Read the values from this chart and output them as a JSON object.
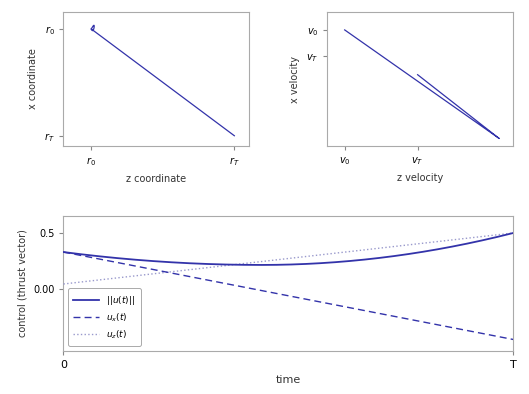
{
  "line_color": "#3333aa",
  "line_color_light": "#9999cc",
  "background": "#ffffff",
  "spine_color": "#aaaaaa",
  "top_left": {
    "xlabel": "z coordinate",
    "ylabel": "x coordinate",
    "xtick_labels": [
      "$r_0$",
      "$r_T$"
    ],
    "ytick_labels": [
      "$r_T$",
      "$r_0$"
    ]
  },
  "top_right": {
    "xlabel": "z velocity",
    "ylabel": "x velocity",
    "xtick_labels": [
      "$v_0$",
      "$v_T$"
    ],
    "ytick_labels": [
      "$v_T$",
      "$v_0$"
    ]
  },
  "bottom": {
    "xlabel": "time",
    "ylabel": "control (thrust vector)",
    "xtick_labels": [
      "0",
      "T"
    ],
    "ytick_vals": [
      0.0,
      0.5
    ],
    "ytick_labels": [
      "0.00",
      "0.5"
    ],
    "ylim": [
      -0.55,
      0.65
    ],
    "legend": [
      "$||u(t)||$",
      "$u_x(t)$",
      "$u_z(t)$"
    ]
  }
}
